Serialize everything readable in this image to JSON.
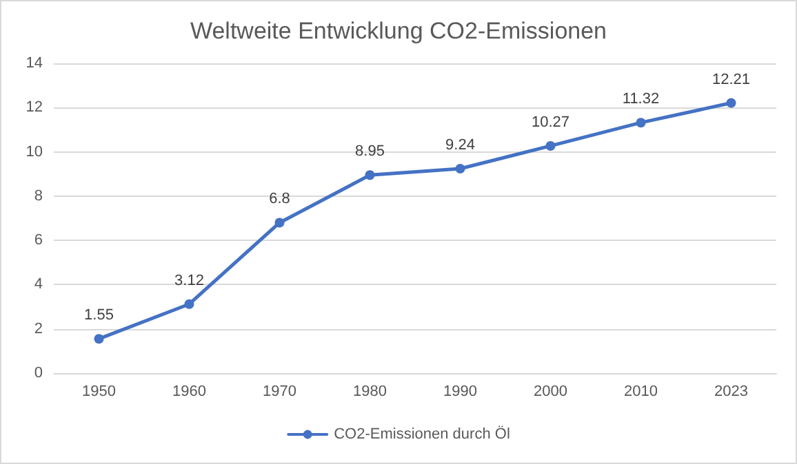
{
  "chart_data": {
    "type": "line",
    "title": "Weltweite Entwicklung CO2-Emissionen",
    "categories": [
      "1950",
      "1960",
      "1970",
      "1980",
      "1990",
      "2000",
      "2010",
      "2023"
    ],
    "series": [
      {
        "name": "CO2-Emissionen durch Öl",
        "color": "#4472c4",
        "values": [
          1.55,
          3.12,
          6.8,
          8.95,
          9.24,
          10.27,
          11.32,
          12.21
        ]
      }
    ],
    "ylim": [
      0,
      14
    ],
    "yticks": [
      0,
      2,
      4,
      6,
      8,
      10,
      12,
      14
    ],
    "grid": "y",
    "legend": "bottom",
    "marker": "circle",
    "line_style": "solid",
    "data_labels": true
  }
}
